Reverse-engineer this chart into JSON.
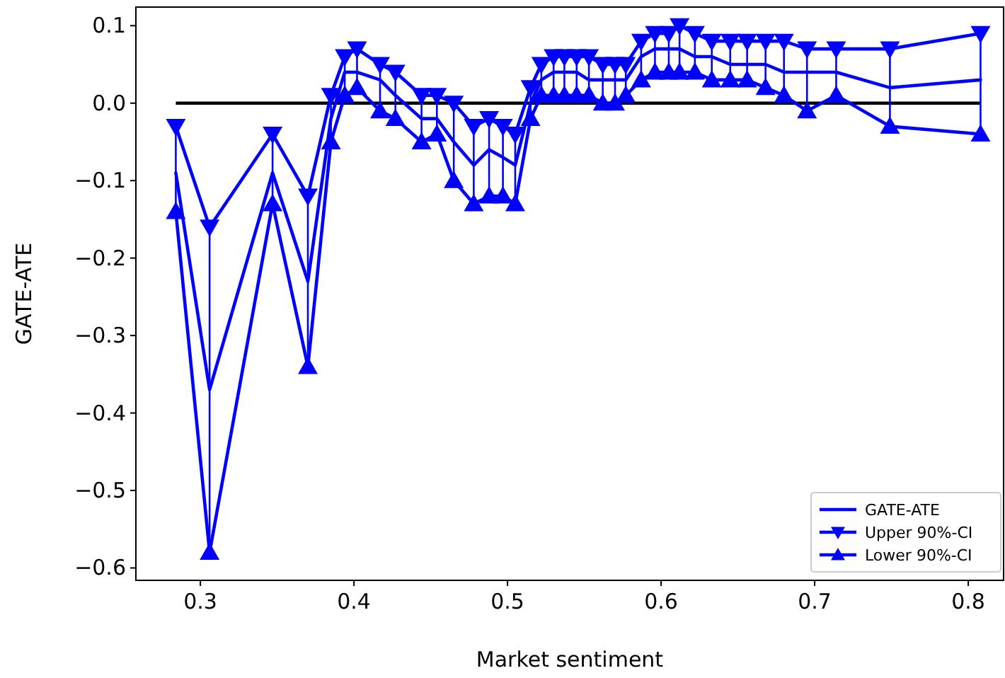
{
  "chart_data": {
    "type": "line",
    "xlabel": "Market sentiment",
    "ylabel": "GATE-ATE",
    "x": [
      0.284,
      0.306,
      0.347,
      0.37,
      0.385,
      0.394,
      0.402,
      0.417,
      0.427,
      0.444,
      0.454,
      0.465,
      0.478,
      0.488,
      0.497,
      0.505,
      0.515,
      0.522,
      0.53,
      0.537,
      0.545,
      0.553,
      0.562,
      0.57,
      0.577,
      0.587,
      0.596,
      0.605,
      0.612,
      0.622,
      0.633,
      0.645,
      0.656,
      0.668,
      0.68,
      0.695,
      0.714,
      0.749,
      0.808
    ],
    "series": [
      {
        "name": "GATE-ATE",
        "color": "#0000ff",
        "marker": "none",
        "values": [
          -0.09,
          -0.37,
          -0.09,
          -0.23,
          -0.02,
          0.04,
          0.04,
          0.03,
          0.01,
          -0.02,
          -0.02,
          -0.05,
          -0.08,
          -0.06,
          -0.07,
          -0.08,
          0.0,
          0.03,
          0.04,
          0.04,
          0.04,
          0.03,
          0.03,
          0.03,
          0.03,
          0.06,
          0.07,
          0.07,
          0.07,
          0.06,
          0.06,
          0.05,
          0.05,
          0.05,
          0.04,
          0.04,
          0.04,
          0.02,
          0.03
        ],
        "errors": [
          [
            -0.14,
            -0.03
          ],
          [
            -0.58,
            -0.16
          ],
          [
            -0.13,
            -0.04
          ],
          [
            -0.34,
            -0.12
          ],
          [
            -0.05,
            0.01
          ],
          [
            0.01,
            0.06
          ],
          [
            0.02,
            0.07
          ],
          [
            -0.01,
            0.05
          ],
          [
            -0.02,
            0.04
          ],
          [
            -0.05,
            0.01
          ],
          [
            -0.04,
            0.01
          ],
          [
            -0.1,
            0.0
          ],
          [
            -0.13,
            -0.03
          ],
          [
            -0.12,
            -0.02
          ],
          [
            -0.12,
            -0.03
          ],
          [
            -0.13,
            -0.04
          ],
          [
            -0.02,
            0.02
          ],
          [
            0.01,
            0.05
          ],
          [
            0.01,
            0.06
          ],
          [
            0.01,
            0.06
          ],
          [
            0.01,
            0.06
          ],
          [
            0.01,
            0.06
          ],
          [
            0.0,
            0.05
          ],
          [
            0.0,
            0.05
          ],
          [
            0.01,
            0.05
          ],
          [
            0.03,
            0.08
          ],
          [
            0.04,
            0.09
          ],
          [
            0.04,
            0.09
          ],
          [
            0.04,
            0.1
          ],
          [
            0.04,
            0.09
          ],
          [
            0.03,
            0.08
          ],
          [
            0.03,
            0.08
          ],
          [
            0.03,
            0.08
          ],
          [
            0.02,
            0.08
          ],
          [
            0.01,
            0.08
          ],
          [
            -0.01,
            0.07
          ],
          [
            0.01,
            0.07
          ],
          [
            -0.03,
            0.07
          ],
          [
            -0.04,
            0.09
          ]
        ]
      },
      {
        "name": "Upper 90%-CI",
        "color": "#0000ff",
        "marker": "triangle-down",
        "values": [
          -0.03,
          -0.16,
          -0.04,
          -0.12,
          0.01,
          0.06,
          0.07,
          0.05,
          0.04,
          0.01,
          0.01,
          0.0,
          -0.03,
          -0.02,
          -0.03,
          -0.04,
          0.02,
          0.05,
          0.06,
          0.06,
          0.06,
          0.06,
          0.05,
          0.05,
          0.05,
          0.08,
          0.09,
          0.09,
          0.1,
          0.09,
          0.08,
          0.08,
          0.08,
          0.08,
          0.08,
          0.07,
          0.07,
          0.07,
          0.09
        ]
      },
      {
        "name": "Lower 90%-CI",
        "color": "#0000ff",
        "marker": "triangle",
        "values": [
          -0.14,
          -0.58,
          -0.13,
          -0.34,
          -0.05,
          0.01,
          0.02,
          -0.01,
          -0.02,
          -0.05,
          -0.04,
          -0.1,
          -0.13,
          -0.12,
          -0.12,
          -0.13,
          -0.02,
          0.01,
          0.01,
          0.01,
          0.01,
          0.01,
          0.0,
          0.0,
          0.01,
          0.03,
          0.04,
          0.04,
          0.04,
          0.04,
          0.03,
          0.03,
          0.03,
          0.02,
          0.01,
          -0.01,
          0.01,
          -0.03,
          -0.04
        ]
      }
    ],
    "ref_lines": [
      {
        "axis": "y",
        "value": 0,
        "color": "#000000"
      }
    ],
    "xlim": [
      0.258,
      0.823
    ],
    "ylim": [
      -0.616,
      0.124
    ],
    "xticks": [
      0.3,
      0.4,
      0.5,
      0.6,
      0.7,
      0.8
    ],
    "yticks": [
      {
        "value": -0.6,
        "label": "−0.6"
      },
      {
        "value": -0.5,
        "label": "−0.5"
      },
      {
        "value": -0.4,
        "label": "−0.4"
      },
      {
        "value": -0.3,
        "label": "−0.3"
      },
      {
        "value": -0.2,
        "label": "−0.2"
      },
      {
        "value": -0.1,
        "label": "−0.1"
      },
      {
        "value": 0,
        "label": "0.0"
      },
      {
        "value": 0.1,
        "label": "0.1"
      }
    ],
    "legend": "bottom right",
    "grid": false
  }
}
